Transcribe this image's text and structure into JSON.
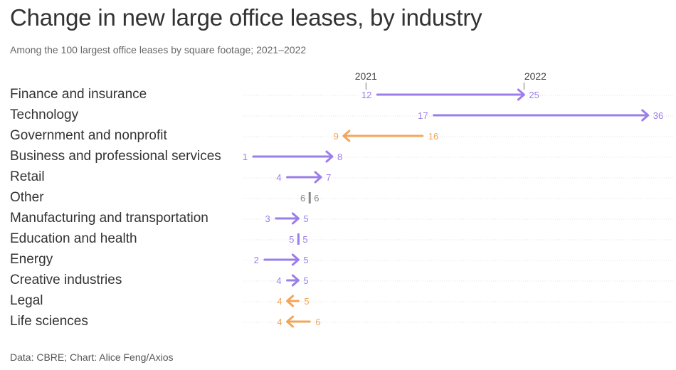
{
  "title": "Change in new large office leases, by industry",
  "subtitle": "Among the 100 largest office leases by square footage; 2021–2022",
  "source": "Data: CBRE; Chart: Alice Feng/Axios",
  "colors": {
    "increase": "#9b7ee8",
    "decrease": "#f2a65a",
    "no_change": "#888888",
    "grid": "#e3e3e3"
  },
  "chart_data": {
    "type": "arrow-dumbbell",
    "title": "Change in new large office leases, by industry",
    "subtitle": "Among the 100 largest office leases by square footage; 2021–2022",
    "legend": {
      "start": "2021",
      "end": "2022"
    },
    "categories": [
      "Finance and insurance",
      "Technology",
      "Government and nonprofit",
      "Business and professional services",
      "Retail",
      "Other",
      "Manufacturing and transportation",
      "Education and health",
      "Energy",
      "Creative industries",
      "Legal",
      "Life sciences"
    ],
    "series": [
      {
        "name": "2021",
        "values": [
          12,
          17,
          16,
          1,
          4,
          6,
          3,
          5,
          2,
          4,
          5,
          6
        ]
      },
      {
        "name": "2022",
        "values": [
          25,
          36,
          9,
          8,
          7,
          6,
          5,
          5,
          5,
          5,
          4,
          4
        ]
      }
    ],
    "xlim": [
      0,
      36
    ],
    "grid": true
  }
}
